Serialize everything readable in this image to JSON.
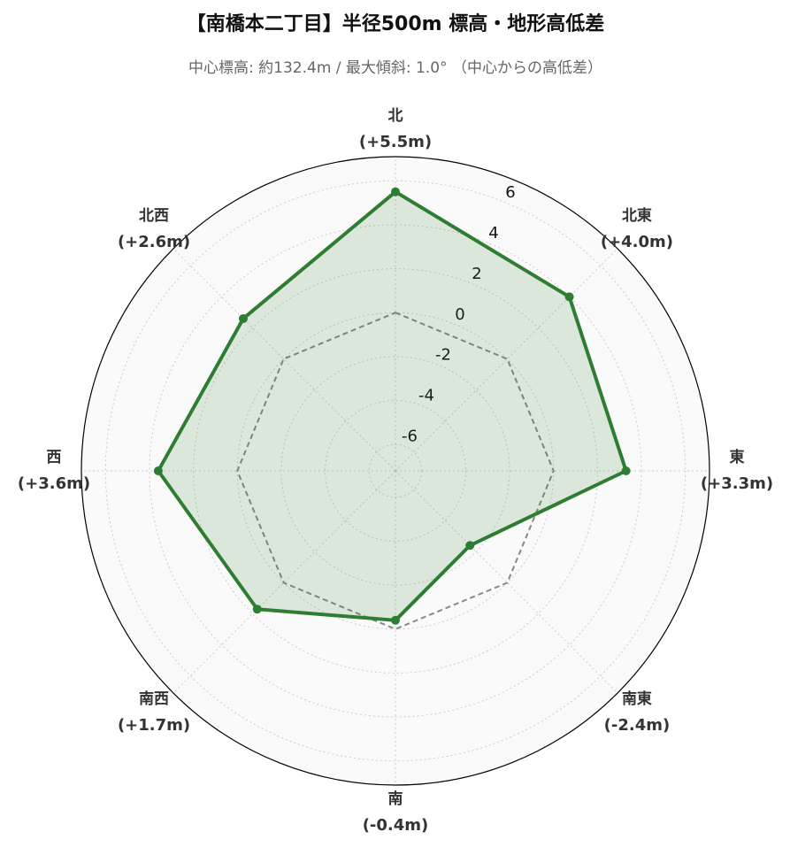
{
  "chart_data": {
    "type": "radar",
    "title": "【南橋本二丁目】半径500m 標高・地形高低差",
    "subtitle": "中心標高: 約132.4m / 最大傾斜: 1.0° （中心からの高低差）",
    "categories": [
      "北",
      "北東",
      "東",
      "南東",
      "南",
      "南西",
      "西",
      "北西"
    ],
    "series": [
      {
        "name": "高低差",
        "color": "#2e7d32",
        "values": [
          5.5,
          4.0,
          3.3,
          -2.4,
          -0.4,
          1.7,
          3.6,
          2.6
        ],
        "value_labels": [
          "(+5.5m)",
          "(+4.0m)",
          "(+3.3m)",
          "(-2.4m)",
          "(-0.4m)",
          "(+1.7m)",
          "(+3.6m)",
          "(+2.6m)"
        ]
      }
    ],
    "baseline": 0,
    "ylim": [
      -7.2,
      7.1
    ],
    "yticks": [
      -6,
      -4,
      -2,
      0,
      2,
      4,
      6
    ],
    "grid": true
  }
}
